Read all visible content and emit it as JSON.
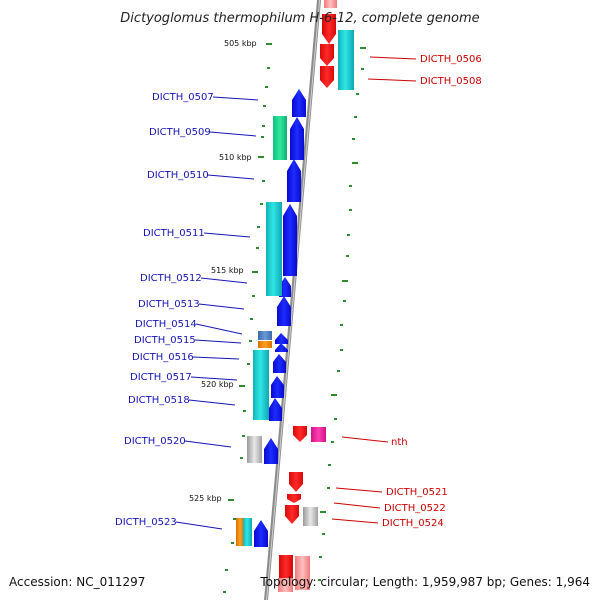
{
  "title": "Dictyoglomus thermophilum H-6-12, complete genome",
  "footer": {
    "accession": "Accession: NC_011297",
    "summary": "Topology: circular; Length: 1,959,987 bp; Genes: 1,964"
  },
  "colors": {
    "backbone": "#8c8c8c",
    "tick": "#2e8b2e",
    "forward_gene": "#0a10e6",
    "reverse_gene": "#ee1111",
    "label_left": "#1515b5",
    "label_right": "#cc0000"
  },
  "scale_labels": [
    "505 kbp",
    "510 kbp",
    "515 kbp",
    "520 kbp",
    "525 kbp"
  ],
  "genes_left": [
    {
      "label": "DICTH_0507"
    },
    {
      "label": "DICTH_0509"
    },
    {
      "label": "DICTH_0510"
    },
    {
      "label": "DICTH_0511"
    },
    {
      "label": "DICTH_0512"
    },
    {
      "label": "DICTH_0513"
    },
    {
      "label": "DICTH_0514"
    },
    {
      "label": "DICTH_0515"
    },
    {
      "label": "DICTH_0516"
    },
    {
      "label": "DICTH_0517"
    },
    {
      "label": "DICTH_0518"
    },
    {
      "label": "DICTH_0520"
    },
    {
      "label": "DICTH_0523"
    }
  ],
  "genes_right": [
    {
      "label": "DICTH_0506"
    },
    {
      "label": "DICTH_0508"
    },
    {
      "label": "nth"
    },
    {
      "label": "DICTH_0521"
    },
    {
      "label": "DICTH_0522"
    },
    {
      "label": "DICTH_0524"
    }
  ]
}
